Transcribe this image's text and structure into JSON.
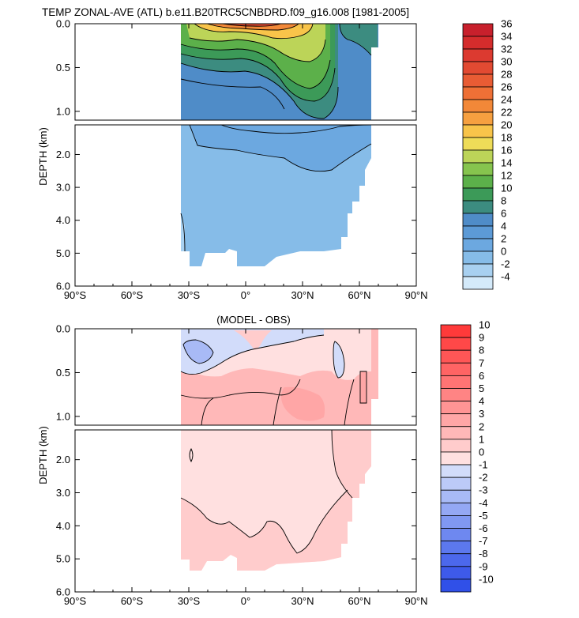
{
  "chart_data": [
    {
      "type": "heatmap",
      "title": "TEMP ZONAL-AVE (ATL) b.e11.B20TRC5CNBDRD.f09_g16.008 [1981-2005]",
      "xlabel": "",
      "ylabel": "DEPTH (km)",
      "x_ticks": [
        "90°S",
        "60°S",
        "30°S",
        "0°",
        "30°N",
        "60°N",
        "90°N"
      ],
      "x_tick_values": [
        -90,
        -60,
        -30,
        0,
        30,
        60,
        90
      ],
      "y_ticks_upper": [
        "0.0",
        "0.5",
        "1.0"
      ],
      "y_tick_values_upper": [
        0.0,
        0.5,
        1.0
      ],
      "y_ticks_lower": [
        "2.0",
        "3.0",
        "4.0",
        "5.0",
        "6.0"
      ],
      "y_tick_values_lower": [
        2.0,
        3.0,
        4.0,
        5.0,
        6.0
      ],
      "xlim": [
        -90,
        90
      ],
      "ylim_upper": [
        0,
        1.1
      ],
      "ylim_lower": [
        1.1,
        6.0
      ],
      "colorbar_labels": [
        "36",
        "34",
        "32",
        "30",
        "28",
        "26",
        "24",
        "22",
        "20",
        "18",
        "16",
        "14",
        "12",
        "10",
        "8",
        "6",
        "4",
        "2",
        "0",
        "-2",
        "-4"
      ],
      "colorbar_values": [
        36,
        34,
        32,
        30,
        28,
        26,
        24,
        22,
        20,
        18,
        16,
        14,
        12,
        10,
        8,
        6,
        4,
        2,
        0,
        -2,
        -4
      ],
      "colorbar_colors": [
        "#c8202c",
        "#d42c2c",
        "#dc3a30",
        "#e24a32",
        "#e85c34",
        "#ee7036",
        "#f28838",
        "#f6a040",
        "#f8c44a",
        "#eedc58",
        "#bcd458",
        "#86c44e",
        "#5cb04a",
        "#3c9a58",
        "#3c8c80",
        "#4f8cc8",
        "#5c9ad6",
        "#6ca8e0",
        "#86bce8",
        "#a8d0f0",
        "#d4eafa"
      ]
    },
    {
      "type": "heatmap",
      "title": "(MODEL - OBS)",
      "xlabel": "",
      "ylabel": "DEPTH (km)",
      "x_ticks": [
        "90°S",
        "60°S",
        "30°S",
        "0°",
        "30°N",
        "60°N",
        "90°N"
      ],
      "x_tick_values": [
        -90,
        -60,
        -30,
        0,
        30,
        60,
        90
      ],
      "y_ticks_upper": [
        "0.0",
        "0.5",
        "1.0"
      ],
      "y_tick_values_upper": [
        0.0,
        0.5,
        1.0
      ],
      "y_ticks_lower": [
        "2.0",
        "3.0",
        "4.0",
        "5.0",
        "6.0"
      ],
      "y_tick_values_lower": [
        2.0,
        3.0,
        4.0,
        5.0,
        6.0
      ],
      "xlim": [
        -90,
        90
      ],
      "ylim_upper": [
        0,
        1.1
      ],
      "ylim_lower": [
        1.1,
        6.0
      ],
      "colorbar_labels": [
        "10",
        "9",
        "8",
        "7",
        "6",
        "5",
        "4",
        "3",
        "2",
        "1",
        "0",
        "-1",
        "-2",
        "-3",
        "-4",
        "-5",
        "-6",
        "-7",
        "-8",
        "-9",
        "-10"
      ],
      "colorbar_values": [
        10,
        9,
        8,
        7,
        6,
        5,
        4,
        3,
        2,
        1,
        0,
        -1,
        -2,
        -3,
        -4,
        -5,
        -6,
        -7,
        -8,
        -9,
        -10
      ],
      "colorbar_colors": [
        "#ff3a3a",
        "#ff4848",
        "#ff5656",
        "#ff6464",
        "#ff7474",
        "#ff8484",
        "#ff9494",
        "#ffa6a6",
        "#ffb8b8",
        "#ffcccc",
        "#ffe0e0",
        "#d2dcfa",
        "#bccaf8",
        "#a8baf6",
        "#94a8f4",
        "#8098f2",
        "#6e88f0",
        "#5c78ee",
        "#4c68ec",
        "#3e5aea",
        "#3050e8"
      ]
    }
  ]
}
